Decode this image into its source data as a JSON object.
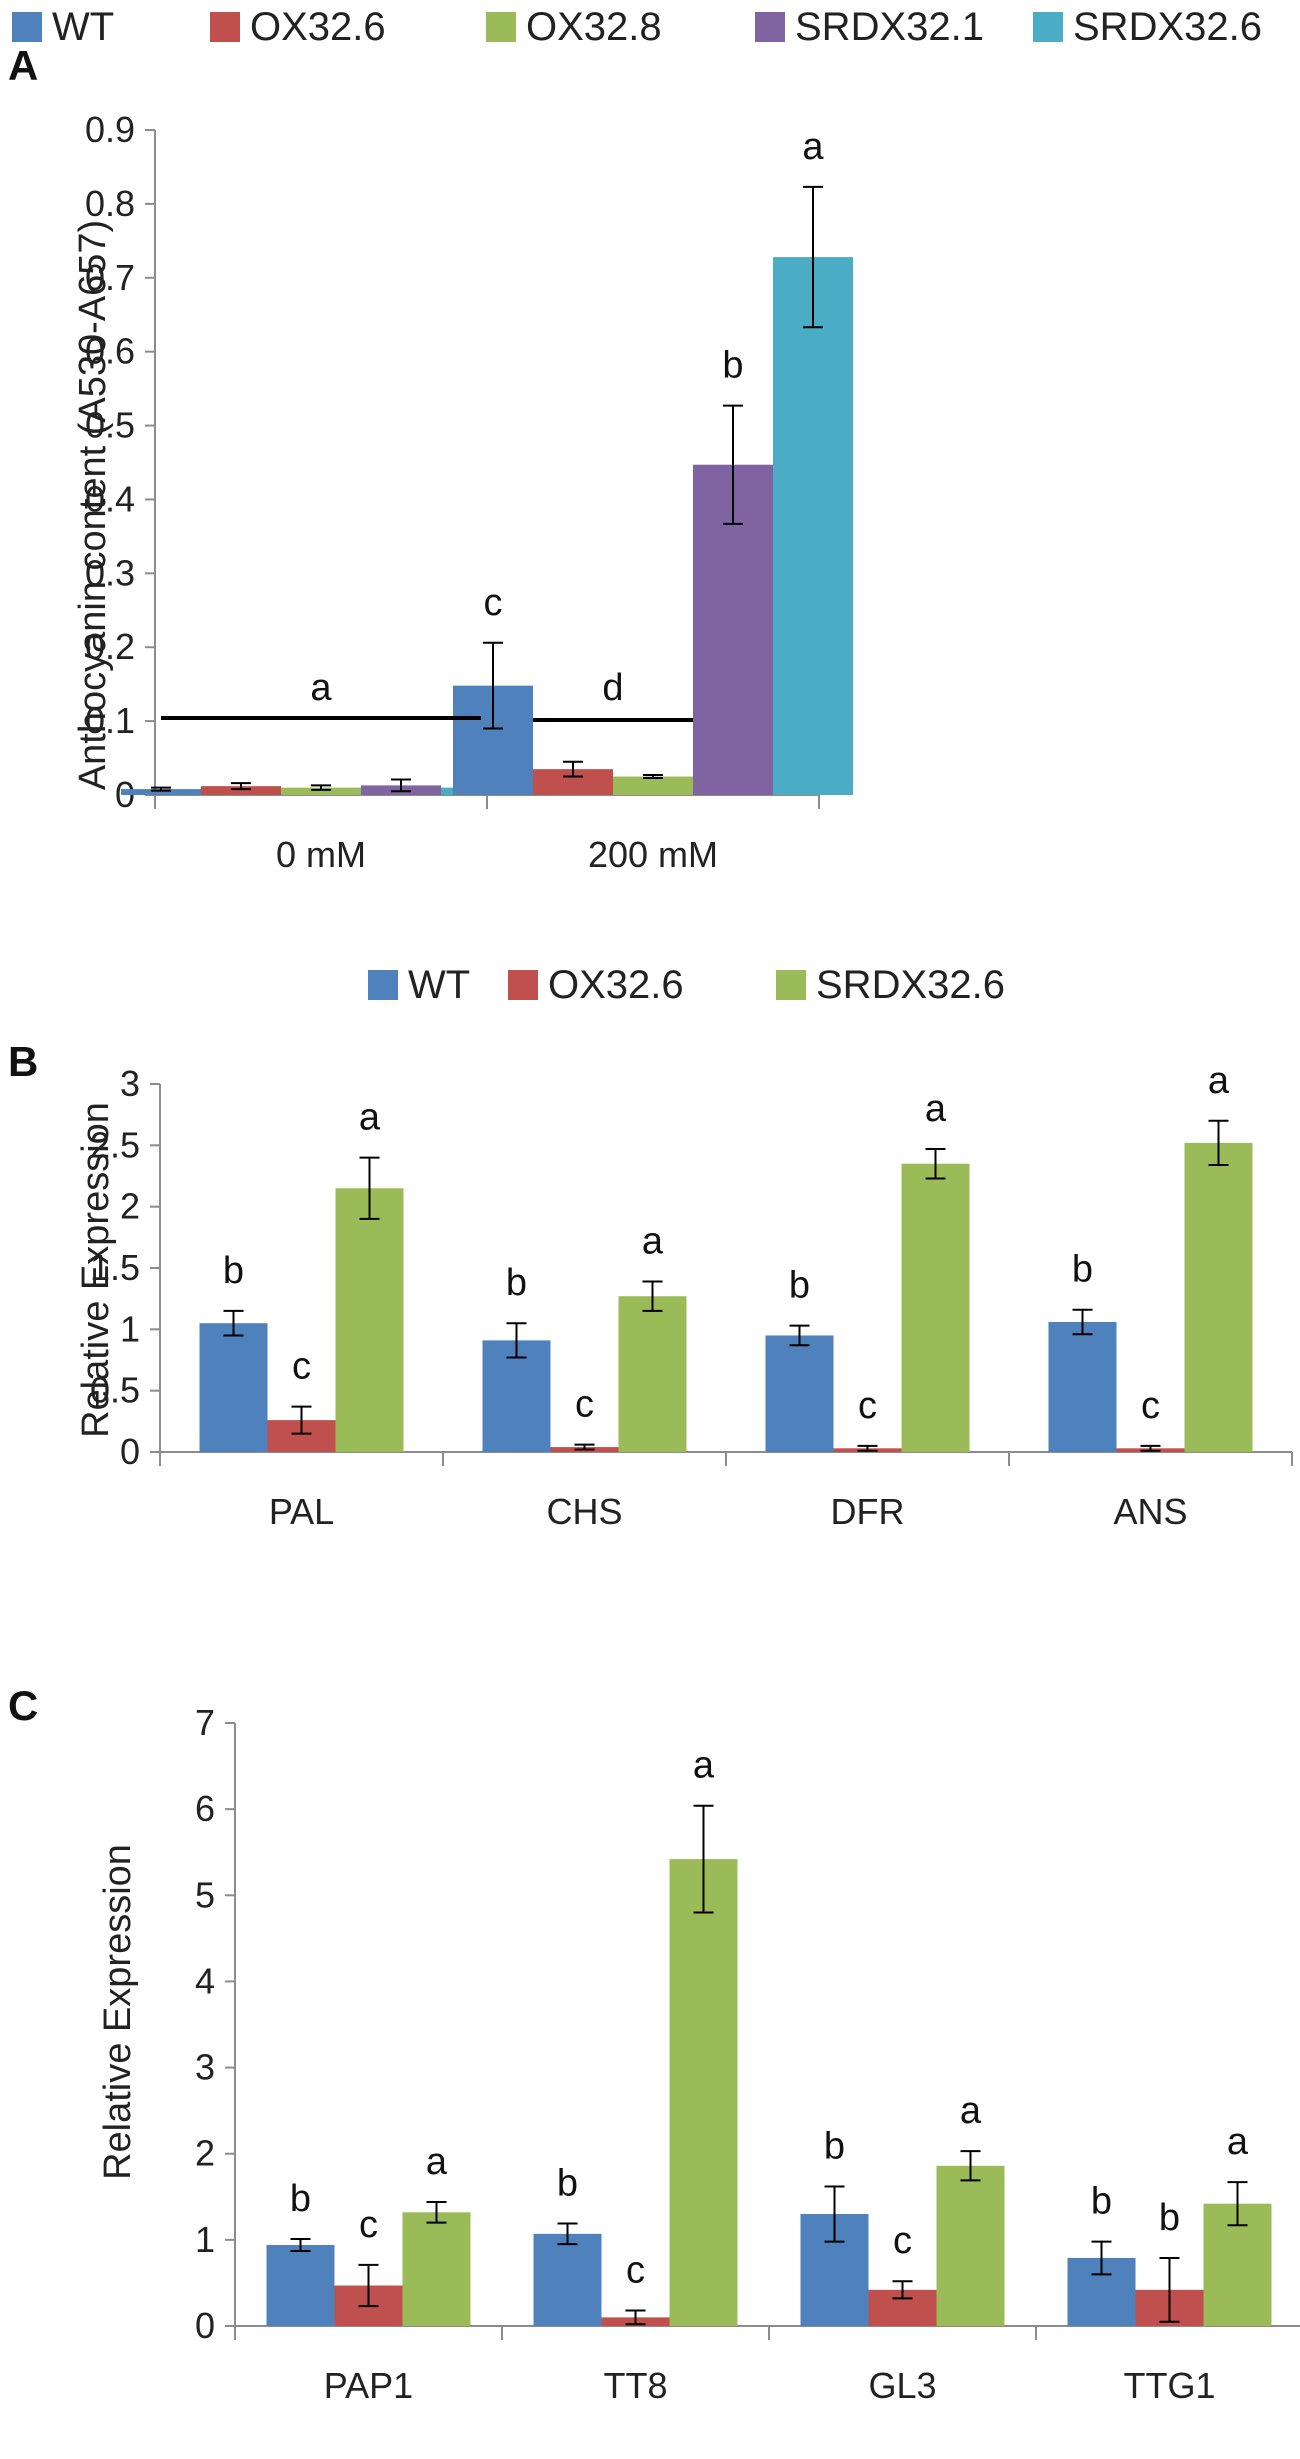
{
  "chart_data": [
    {
      "panel": "A",
      "type": "bar",
      "categories": [
        "0 mM",
        "200 mM"
      ],
      "series": [
        {
          "name": "WT",
          "color": "#4F81BD",
          "values": [
            0.008,
            0.148
          ],
          "errors": [
            0.002,
            0.058
          ]
        },
        {
          "name": "OX32.6",
          "color": "#C0504D",
          "values": [
            0.012,
            0.035
          ],
          "errors": [
            0.004,
            0.01
          ]
        },
        {
          "name": "OX32.8",
          "color": "#9BBB59",
          "values": [
            0.01,
            0.025
          ],
          "errors": [
            0.003,
            0.002
          ]
        },
        {
          "name": "SRDX32.1",
          "color": "#8064A2",
          "values": [
            0.013,
            0.447
          ],
          "errors": [
            0.008,
            0.08
          ]
        },
        {
          "name": "SRDX32.6",
          "color": "#4BACC6",
          "values": [
            0.01,
            0.728
          ],
          "errors": [
            0.003,
            0.095
          ]
        }
      ],
      "ylabel": "Anthocyanin content (A530-A657)",
      "xlabel": "",
      "ylim": [
        0,
        0.9
      ],
      "yticks": [
        "0",
        "0.1",
        "0.2",
        "0.3",
        "0.4",
        "0.5",
        "0.6",
        "0.7",
        "0.8",
        "0.9"
      ],
      "significance": [
        {
          "text": "a",
          "group": "0 mM span"
        },
        {
          "text": "c",
          "category": "200 mM",
          "series": "WT"
        },
        {
          "text": "d",
          "category": "200 mM",
          "series": "OX32.6–OX32.8 span"
        },
        {
          "text": "b",
          "category": "200 mM",
          "series": "SRDX32.1"
        },
        {
          "text": "a",
          "category": "200 mM",
          "series": "SRDX32.6"
        }
      ],
      "legend_position": "top"
    },
    {
      "panel": "B",
      "type": "bar",
      "categories": [
        "PAL",
        "CHS",
        "DFR",
        "ANS"
      ],
      "series": [
        {
          "name": "WT",
          "color": "#4F81BD",
          "values": [
            1.05,
            0.91,
            0.95,
            1.06
          ],
          "errors": [
            0.1,
            0.14,
            0.08,
            0.1
          ],
          "labels": [
            "b",
            "b",
            "b",
            "b"
          ]
        },
        {
          "name": "OX32.6",
          "color": "#C0504D",
          "values": [
            0.26,
            0.04,
            0.03,
            0.03
          ],
          "errors": [
            0.11,
            0.02,
            0.02,
            0.02
          ],
          "labels": [
            "c",
            "c",
            "c",
            "c"
          ]
        },
        {
          "name": "SRDX32.6",
          "color": "#9BBB59",
          "values": [
            2.15,
            1.27,
            2.35,
            2.52
          ],
          "errors": [
            0.25,
            0.12,
            0.12,
            0.18
          ],
          "labels": [
            "a",
            "a",
            "a",
            "a"
          ]
        }
      ],
      "ylabel": "Relative Expression",
      "xlabel": "",
      "ylim": [
        0,
        3
      ],
      "yticks": [
        "0",
        "0.5",
        "1",
        "1.5",
        "2",
        "2.5",
        "3"
      ],
      "legend_position": "top"
    },
    {
      "panel": "C",
      "type": "bar",
      "categories": [
        "PAP1",
        "TT8",
        "GL3",
        "TTG1"
      ],
      "series": [
        {
          "name": "WT",
          "color": "#4F81BD",
          "values": [
            0.94,
            1.07,
            1.3,
            0.79
          ],
          "errors": [
            0.07,
            0.12,
            0.32,
            0.19
          ],
          "labels": [
            "b",
            "b",
            "b",
            "b"
          ]
        },
        {
          "name": "OX32.6",
          "color": "#C0504D",
          "values": [
            0.47,
            0.1,
            0.42,
            0.42
          ],
          "errors": [
            0.24,
            0.08,
            0.1,
            0.37
          ],
          "labels": [
            "c",
            "c",
            "c",
            "b"
          ]
        },
        {
          "name": "SRDX32.6",
          "color": "#9BBB59",
          "values": [
            1.32,
            5.42,
            1.86,
            1.42
          ],
          "errors": [
            0.12,
            0.62,
            0.17,
            0.25
          ],
          "labels": [
            "a",
            "a",
            "a",
            "a"
          ]
        }
      ],
      "ylabel": "Relative Expression",
      "xlabel": "",
      "ylim": [
        0,
        7
      ],
      "yticks": [
        "0",
        "1",
        "2",
        "3",
        "4",
        "5",
        "6",
        "7"
      ],
      "legend_position": "none"
    }
  ]
}
